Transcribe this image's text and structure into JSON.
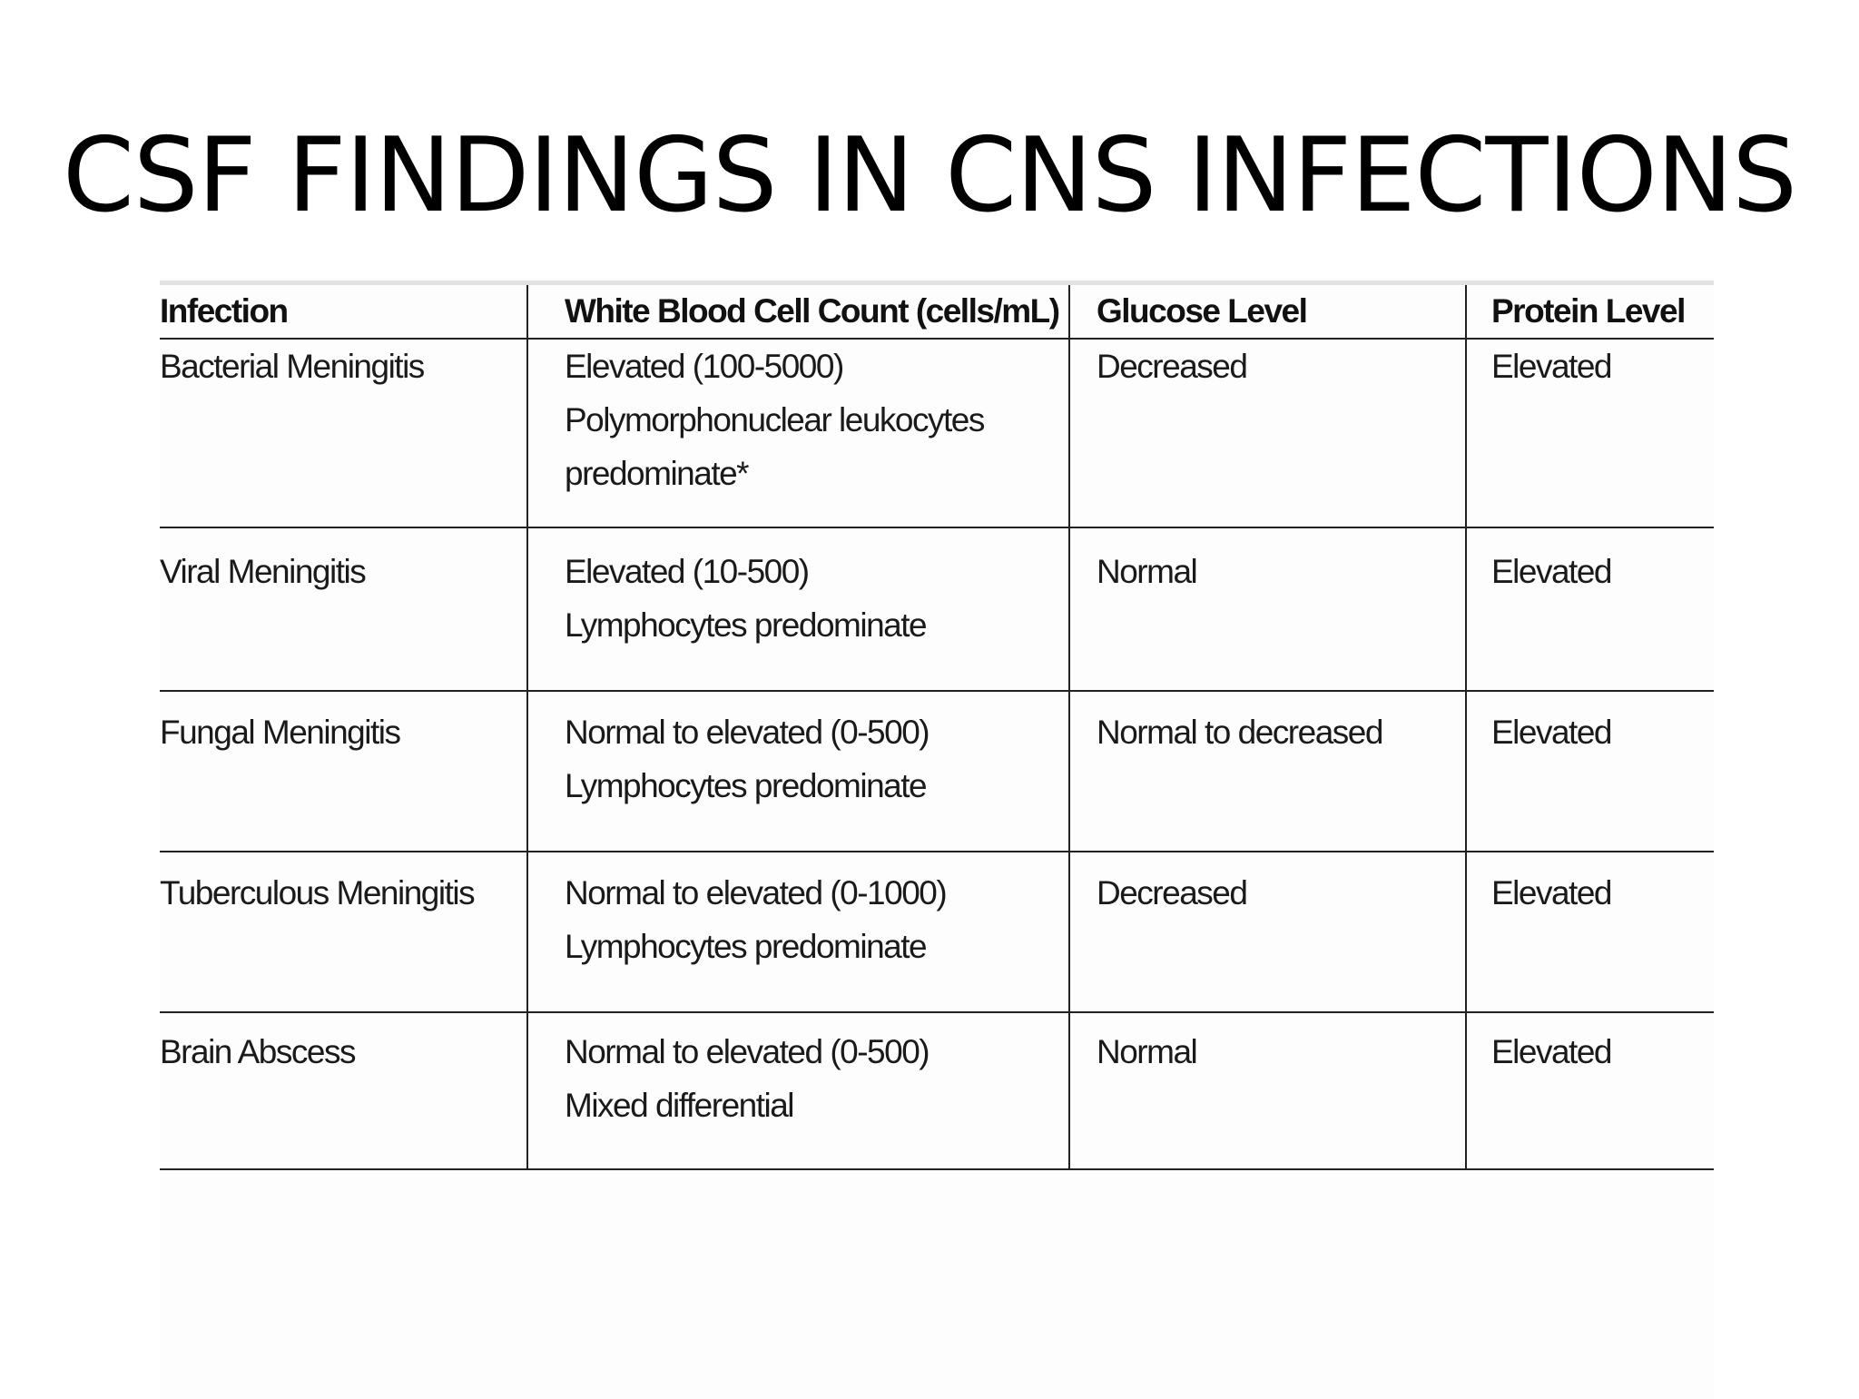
{
  "slide": {
    "title": "CSF FINDINGS IN CNS INFECTIONS"
  },
  "table": {
    "headers": {
      "infection": "Infection",
      "wbc": "White Blood Cell Count (cells/mL)",
      "glucose": "Glucose Level",
      "protein": "Protein Level"
    },
    "rows": [
      {
        "infection": "Bacterial Meningitis",
        "wbc_line1": "Elevated (100-5000)",
        "wbc_line2": "Polymorphonuclear leukocytes",
        "wbc_line3": "predominate*",
        "glucose": "Decreased",
        "protein": "Elevated"
      },
      {
        "infection": "Viral Meningitis",
        "wbc_line1": "Elevated (10-500)",
        "wbc_line2": "Lymphocytes predominate",
        "glucose": "Normal",
        "protein": "Elevated"
      },
      {
        "infection": "Fungal Meningitis",
        "wbc_line1": "Normal to elevated (0-500)",
        "wbc_line2": "Lymphocytes predominate",
        "glucose": "Normal to decreased",
        "protein": "Elevated"
      },
      {
        "infection": "Tuberculous Meningitis",
        "wbc_line1": "Normal to elevated (0-1000)",
        "wbc_line2": "Lymphocytes predominate",
        "glucose": "Decreased",
        "protein": "Elevated"
      },
      {
        "infection": "Brain Abscess",
        "wbc_line1": "Normal to elevated (0-500)",
        "wbc_line2": "Mixed differential",
        "glucose": "Normal",
        "protein": "Elevated"
      }
    ]
  }
}
